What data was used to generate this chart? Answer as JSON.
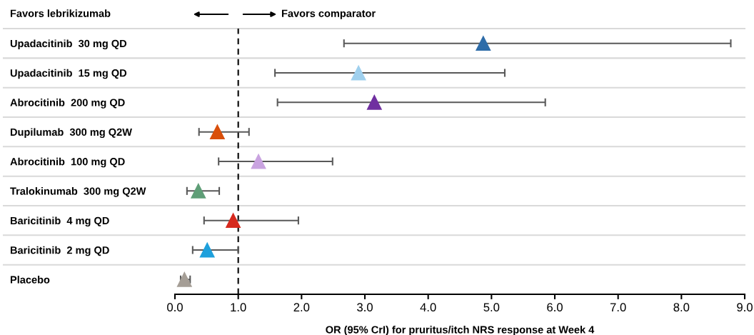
{
  "chart_data": {
    "type": "scatter",
    "orientation": "horizontal",
    "categories": [
      "Upadacitinib  30 mg QD",
      "Upadacitinib  15 mg QD",
      "Abrocitinib  200 mg QD",
      "Dupilumab  300 mg Q2W",
      "Abrocitinib  100 mg QD",
      "Tralokinumab  300 mg Q2W",
      "Baricitinib  4 mg QD",
      "Baricitinib  2 mg QD",
      "Placebo"
    ],
    "values": [
      4.87,
      2.9,
      3.15,
      0.67,
      1.32,
      0.37,
      0.92,
      0.51,
      0.15
    ],
    "errors": [
      [
        2.67,
        8.78
      ],
      [
        1.58,
        5.21
      ],
      [
        1.62,
        5.85
      ],
      [
        0.38,
        1.17
      ],
      [
        0.69,
        2.49
      ],
      [
        0.19,
        0.7
      ],
      [
        0.46,
        1.95
      ],
      [
        0.28,
        1.0
      ],
      [
        0.09,
        0.24
      ]
    ],
    "colors": [
      "#2e6ca8",
      "#9fd0ee",
      "#7030a0",
      "#d94f0a",
      "#c9a3e0",
      "#5f9e77",
      "#d62a1e",
      "#1ea0dc",
      "#a59e96"
    ],
    "marker": "triangle",
    "xlabel": "OR (95% CrI) for pruritus/itch NRS response at Week 4",
    "xlim": [
      0,
      9
    ],
    "xticks": [
      {
        "value": 0,
        "label": "0.0"
      },
      {
        "value": 1,
        "label": "1.0"
      },
      {
        "value": 2,
        "label": "2.0"
      },
      {
        "value": 3,
        "label": "3.0"
      },
      {
        "value": 4,
        "label": "4.0"
      },
      {
        "value": 5,
        "label": "5.0"
      },
      {
        "value": 6,
        "label": "6.0"
      },
      {
        "value": 7,
        "label": "7.0"
      },
      {
        "value": 8,
        "label": "8.0"
      },
      {
        "value": 9,
        "label": "9.0"
      }
    ],
    "ref_lines": [
      {
        "axis": "x",
        "value": 1,
        "color": "#000000",
        "line_style": "dashed"
      }
    ],
    "grid": "y",
    "annotations": [
      "Favors lebrikizumab",
      "Favors comparator"
    ]
  }
}
